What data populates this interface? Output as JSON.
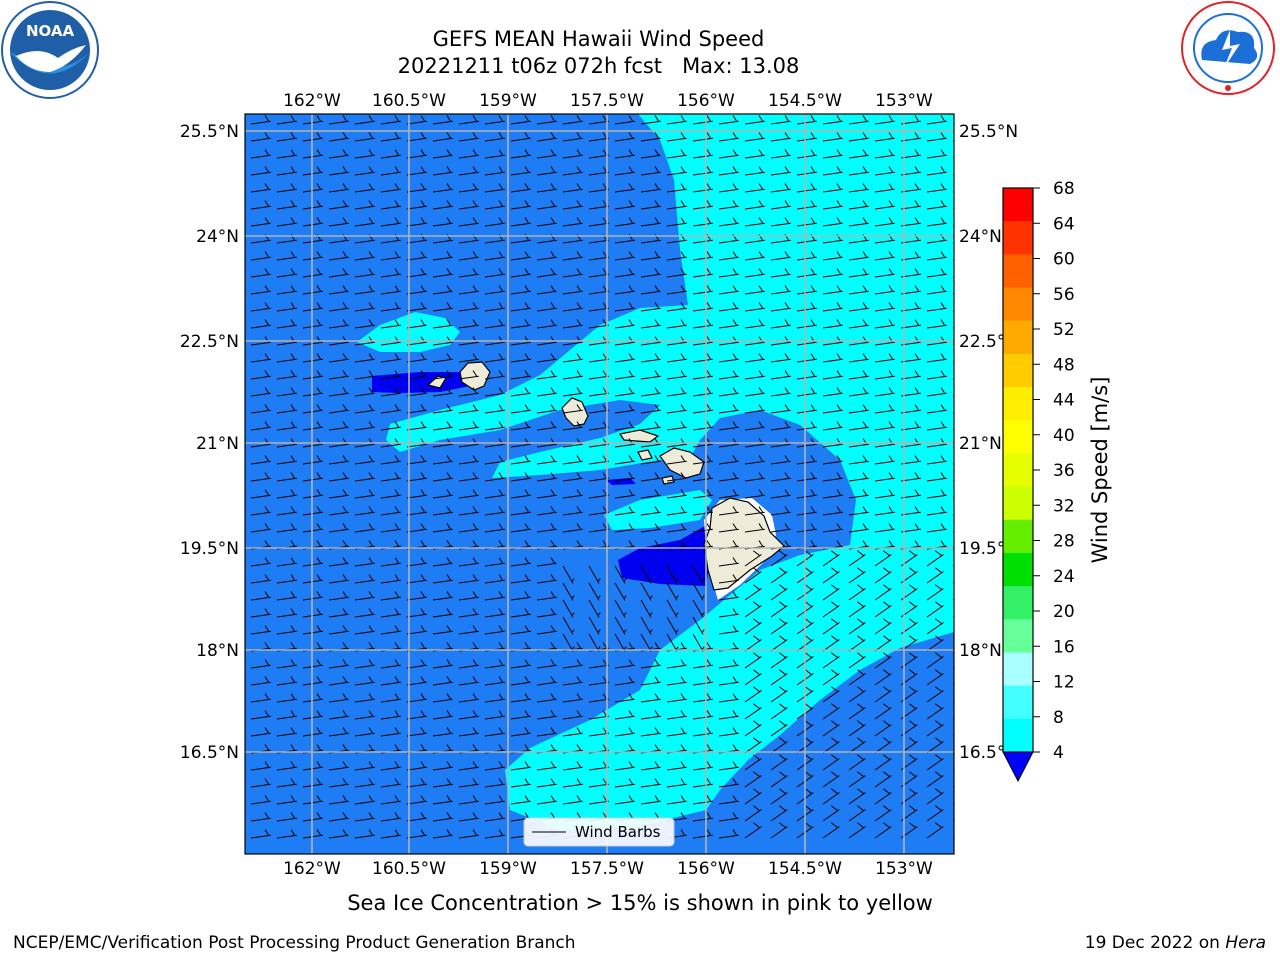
{
  "header": {
    "title_line1": "GEFS MEAN Hawaii Wind Speed",
    "title_line2": "20221211 t06z 072h fcst   Max: 13.08"
  },
  "logos": {
    "left": {
      "icon": "noaa-logo",
      "text": "NOAA",
      "ring_text": "NATIONAL OCEANIC AND ATMOSPHERIC ADMINISTRATION · U.S. DEPARTMENT OF COMMERCE",
      "colors": [
        "#1f5fa8",
        "#2a8fe0",
        "#ffffff"
      ]
    },
    "right": {
      "icon": "nws-logo",
      "ring_text": "NATIONAL WEATHER SERVICE",
      "colors": [
        "#e3202a",
        "#1c6fd6",
        "#ffffff"
      ]
    }
  },
  "map": {
    "lon_labels": [
      "162°W",
      "160.5°W",
      "159°W",
      "157.5°W",
      "156°W",
      "154.5°W",
      "153°W"
    ],
    "lat_labels": [
      "25.5°N",
      "24°N",
      "22.5°N",
      "21°N",
      "19.5°N",
      "18°N",
      "16.5°N"
    ],
    "legend_label": "Wind Barbs",
    "colors": {
      "ocean_base": "#1e7df5",
      "band_8_12": "#00ffff",
      "band_12_16": "#33ffff",
      "band_lt4": "#0000f0",
      "land": "#eeecd9",
      "grid": "#b4b4b4"
    }
  },
  "colorbar": {
    "label": "Wind Speed [m/s]",
    "ticks": [
      "68",
      "64",
      "60",
      "56",
      "52",
      "48",
      "44",
      "40",
      "36",
      "32",
      "28",
      "24",
      "20",
      "16",
      "12",
      "8",
      "4"
    ],
    "colors": [
      "#ff0000",
      "#ff3300",
      "#ff6000",
      "#ff8800",
      "#ffaa00",
      "#ffcc00",
      "#ffee00",
      "#ffff00",
      "#e6ff00",
      "#ccff00",
      "#66ee00",
      "#00e000",
      "#33f066",
      "#66ff99",
      "#aaffff",
      "#44ffff",
      "#00ffff",
      "#1e7df5"
    ],
    "under_color": "#0000ff"
  },
  "footnote": "Sea Ice Concentration > 15% is shown in pink to yellow",
  "credit_left": "NCEP/EMC/Verification Post Processing Product Generation Branch",
  "credit_right_date": "19 Dec 2022 on ",
  "credit_right_host": "Hera"
}
